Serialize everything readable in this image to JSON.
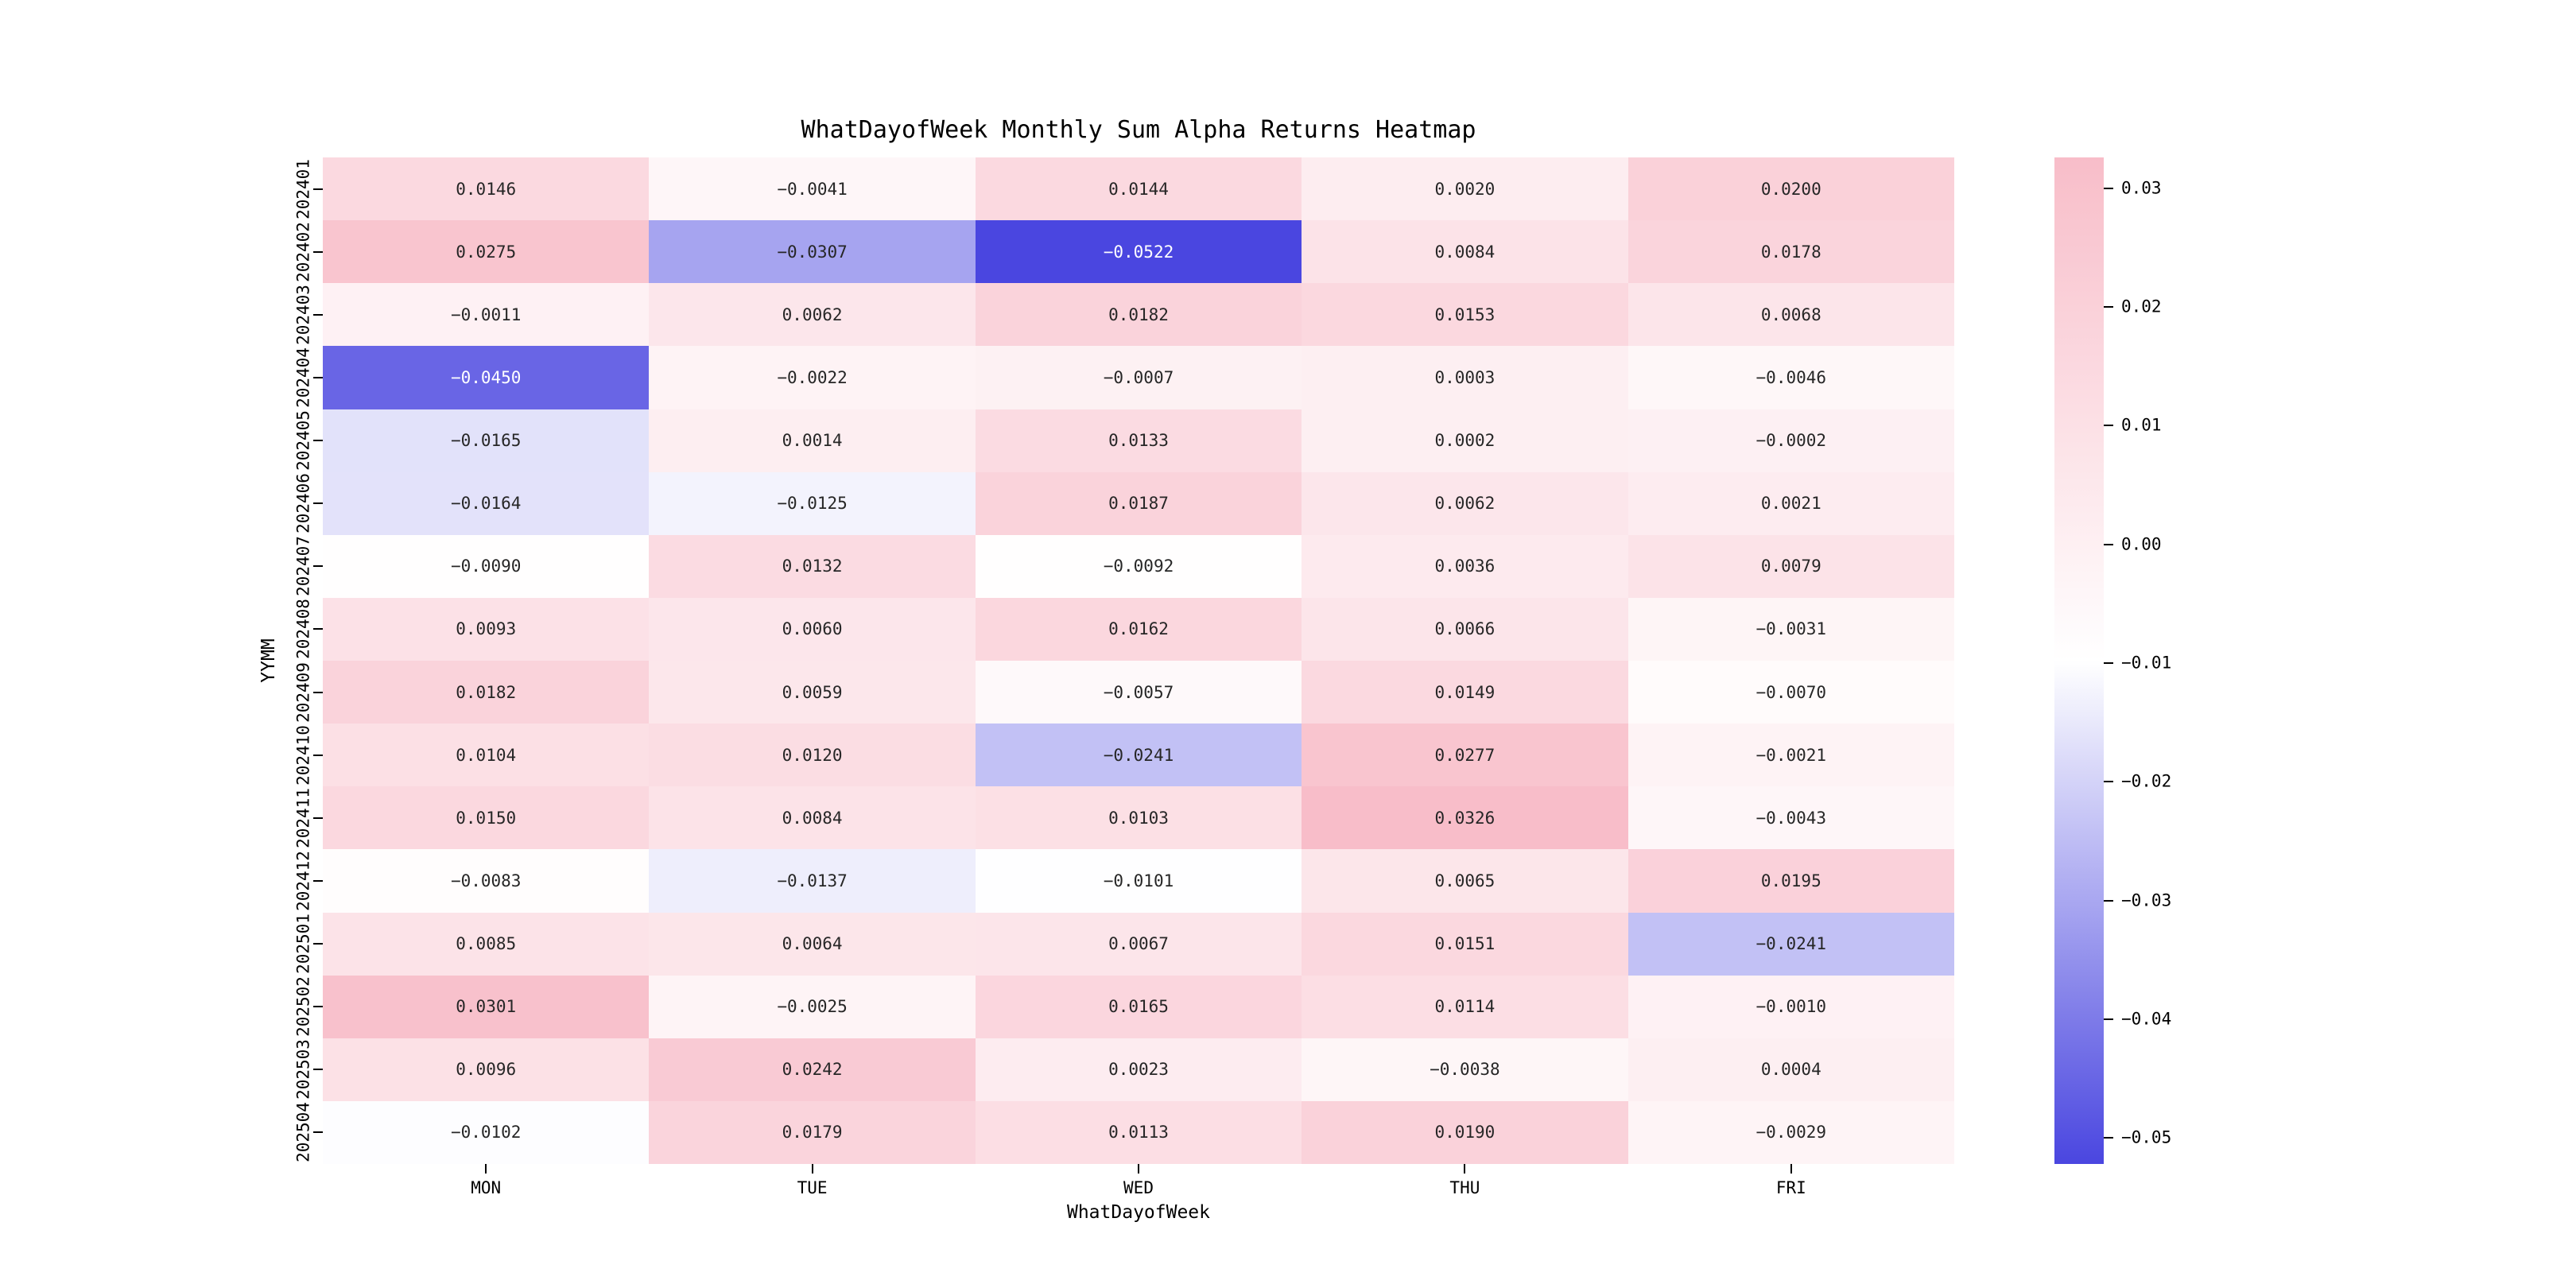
{
  "chart_data": {
    "type": "heatmap",
    "title": "WhatDayofWeek Monthly Sum Alpha Returns Heatmap",
    "xlabel": "WhatDayofWeek",
    "ylabel": "YYMM",
    "columns": [
      "MON",
      "TUE",
      "WED",
      "THU",
      "FRI"
    ],
    "rows": [
      "202401",
      "202402",
      "202403",
      "202404",
      "202405",
      "202406",
      "202407",
      "202408",
      "202409",
      "202410",
      "202411",
      "202412",
      "202501",
      "202502",
      "202503",
      "202504"
    ],
    "values": [
      [
        0.0146,
        -0.0041,
        0.0144,
        0.002,
        0.02
      ],
      [
        0.0275,
        -0.0307,
        -0.0522,
        0.0084,
        0.0178
      ],
      [
        -0.0011,
        0.0062,
        0.0182,
        0.0153,
        0.0068
      ],
      [
        -0.045,
        -0.0022,
        -0.0007,
        0.0003,
        -0.0046
      ],
      [
        -0.0165,
        0.0014,
        0.0133,
        0.0002,
        -0.0002
      ],
      [
        -0.0164,
        -0.0125,
        0.0187,
        0.0062,
        0.0021
      ],
      [
        -0.009,
        0.0132,
        -0.0092,
        0.0036,
        0.0079
      ],
      [
        0.0093,
        0.006,
        0.0162,
        0.0066,
        -0.0031
      ],
      [
        0.0182,
        0.0059,
        -0.0057,
        0.0149,
        -0.007
      ],
      [
        0.0104,
        0.012,
        -0.0241,
        0.0277,
        -0.0021
      ],
      [
        0.015,
        0.0084,
        0.0103,
        0.0326,
        -0.0043
      ],
      [
        -0.0083,
        -0.0137,
        -0.0101,
        0.0065,
        0.0195
      ],
      [
        0.0085,
        0.0064,
        0.0067,
        0.0151,
        -0.0241
      ],
      [
        0.0301,
        -0.0025,
        0.0165,
        0.0114,
        -0.001
      ],
      [
        0.0096,
        0.0242,
        0.0023,
        -0.0038,
        0.0004
      ],
      [
        -0.0102,
        0.0179,
        0.0113,
        0.019,
        -0.0029
      ]
    ],
    "vmin": -0.0522,
    "vmax": 0.0326,
    "colorbar_ticks": [
      0.03,
      0.02,
      0.01,
      0.0,
      -0.01,
      -0.02,
      -0.03,
      -0.04,
      -0.05
    ],
    "colors": {
      "low": "#4a46e0",
      "mid": "#ffffff",
      "high": "#f8bdc9",
      "annot_dark": "#262626",
      "annot_light": "#ffffff"
    },
    "annotation_format": ".4f",
    "legend_position": "right-colorbar",
    "grid": false
  }
}
